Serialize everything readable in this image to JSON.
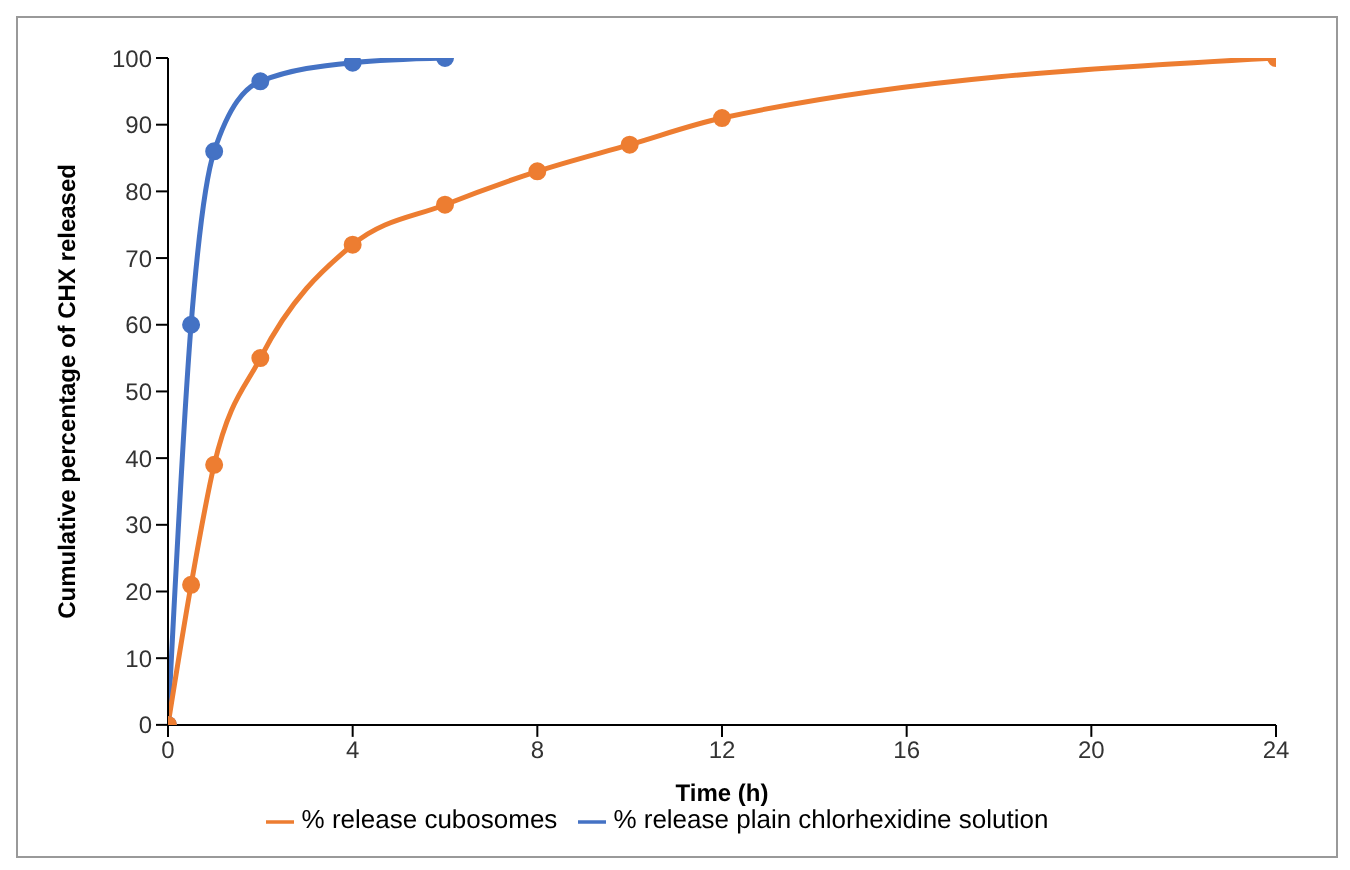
{
  "chart_data": {
    "type": "line",
    "xlabel": "Time (h)",
    "ylabel": "Cumulative percentage of CHX released",
    "series": [
      {
        "name": "% release plain chlorhexidine solution",
        "color": "#4472c4",
        "x": [
          0,
          0.5,
          1,
          2,
          4,
          6
        ],
        "values": [
          0,
          60,
          86,
          96.5,
          99.3,
          100
        ]
      },
      {
        "name": "% release cubosomes",
        "color": "#ed7d31",
        "x": [
          0,
          0.5,
          1,
          2,
          4,
          6,
          8,
          10,
          12,
          24
        ],
        "values": [
          0,
          21,
          39,
          55,
          72,
          78,
          83,
          87,
          91,
          100
        ]
      }
    ],
    "xlim": [
      0,
      24
    ],
    "xticks": [
      0,
      4,
      8,
      12,
      16,
      20,
      24
    ],
    "ylim": [
      0,
      100
    ],
    "yticks": [
      0,
      10,
      20,
      30,
      40,
      50,
      60,
      70,
      80,
      90,
      100
    ],
    "grid": false,
    "legend": "bottom",
    "marker": "circle",
    "line_style": "solid"
  }
}
